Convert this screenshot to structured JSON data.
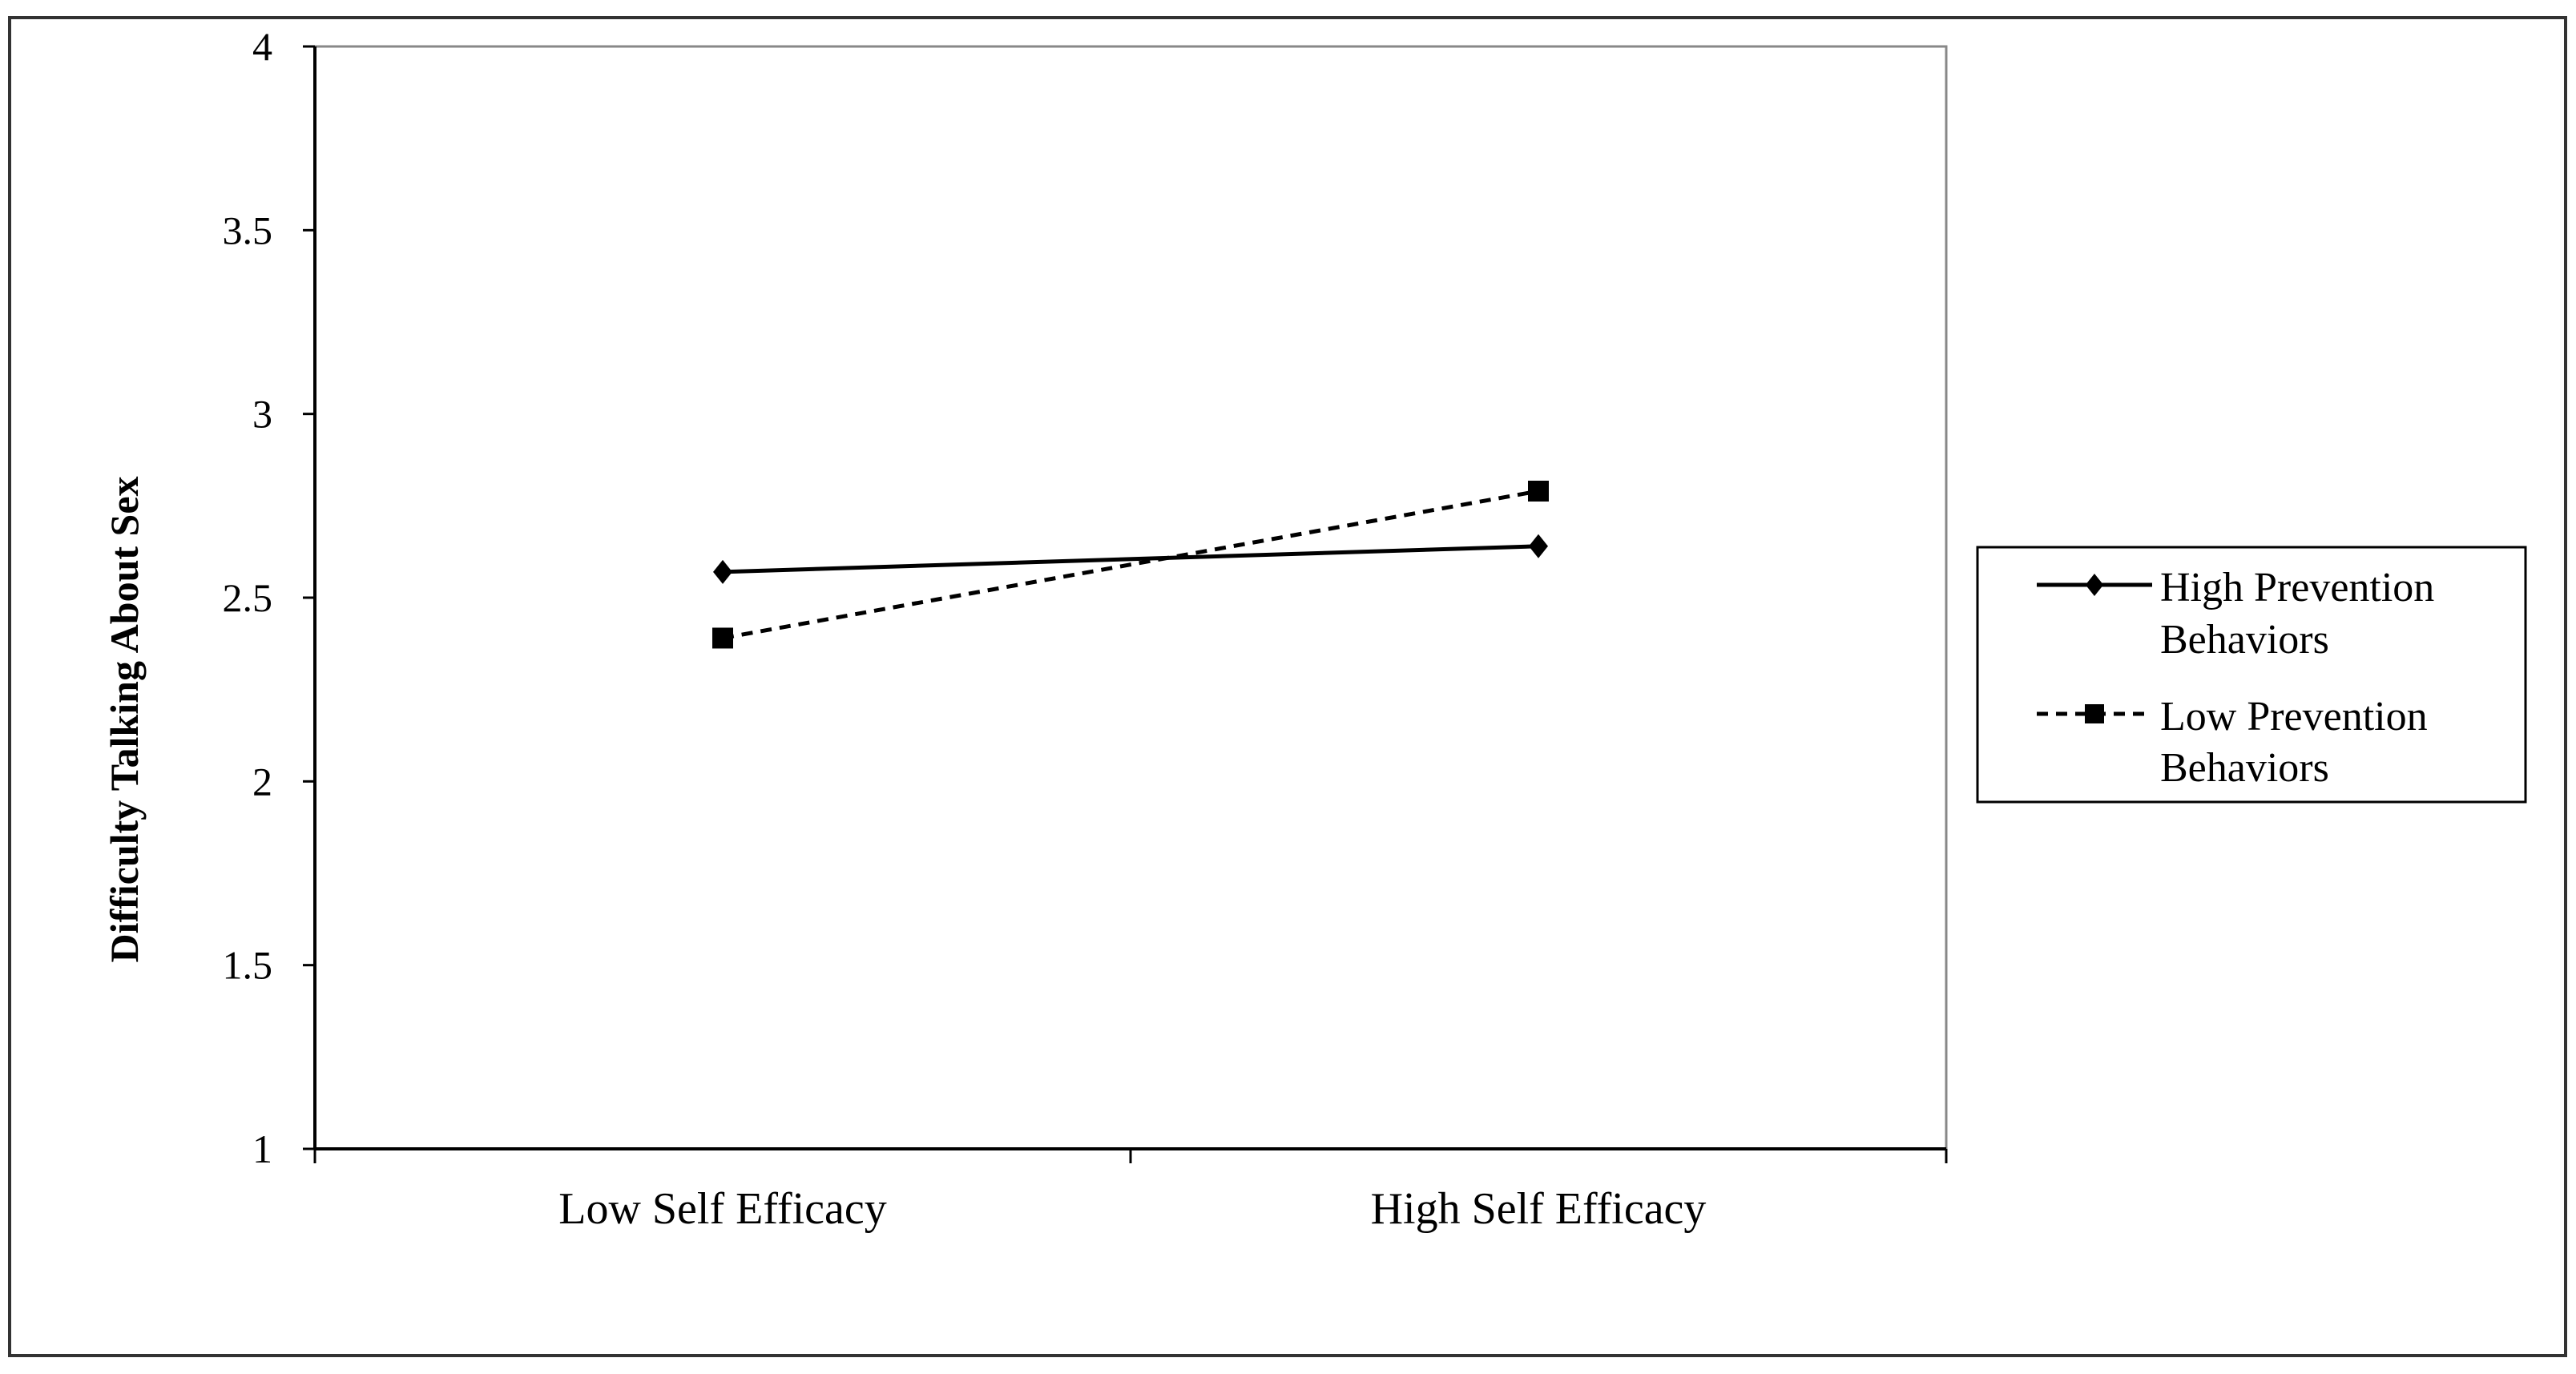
{
  "chart_data": {
    "type": "line",
    "title": "",
    "xlabel": "",
    "ylabel": "Difficulty Talking About Sex",
    "categories": [
      "Low Self Efficacy",
      "High Self Efficacy"
    ],
    "ylim": [
      1,
      4
    ],
    "yticks": [
      "1",
      "1.5",
      "2",
      "2.5",
      "3",
      "3.5",
      "4"
    ],
    "grid": false,
    "legend_position": "right",
    "series": [
      {
        "name": "High Prevention Behaviors",
        "legend_lines": [
          "High Prevention",
          "Behaviors"
        ],
        "values": [
          2.57,
          2.64
        ],
        "line_style": "solid",
        "marker": "diamond",
        "color": "#000000"
      },
      {
        "name": "Low Prevention Behaviors",
        "legend_lines": [
          "Low Prevention",
          "Behaviors"
        ],
        "values": [
          2.39,
          2.79
        ],
        "line_style": "dashed",
        "marker": "square",
        "color": "#000000"
      }
    ]
  }
}
